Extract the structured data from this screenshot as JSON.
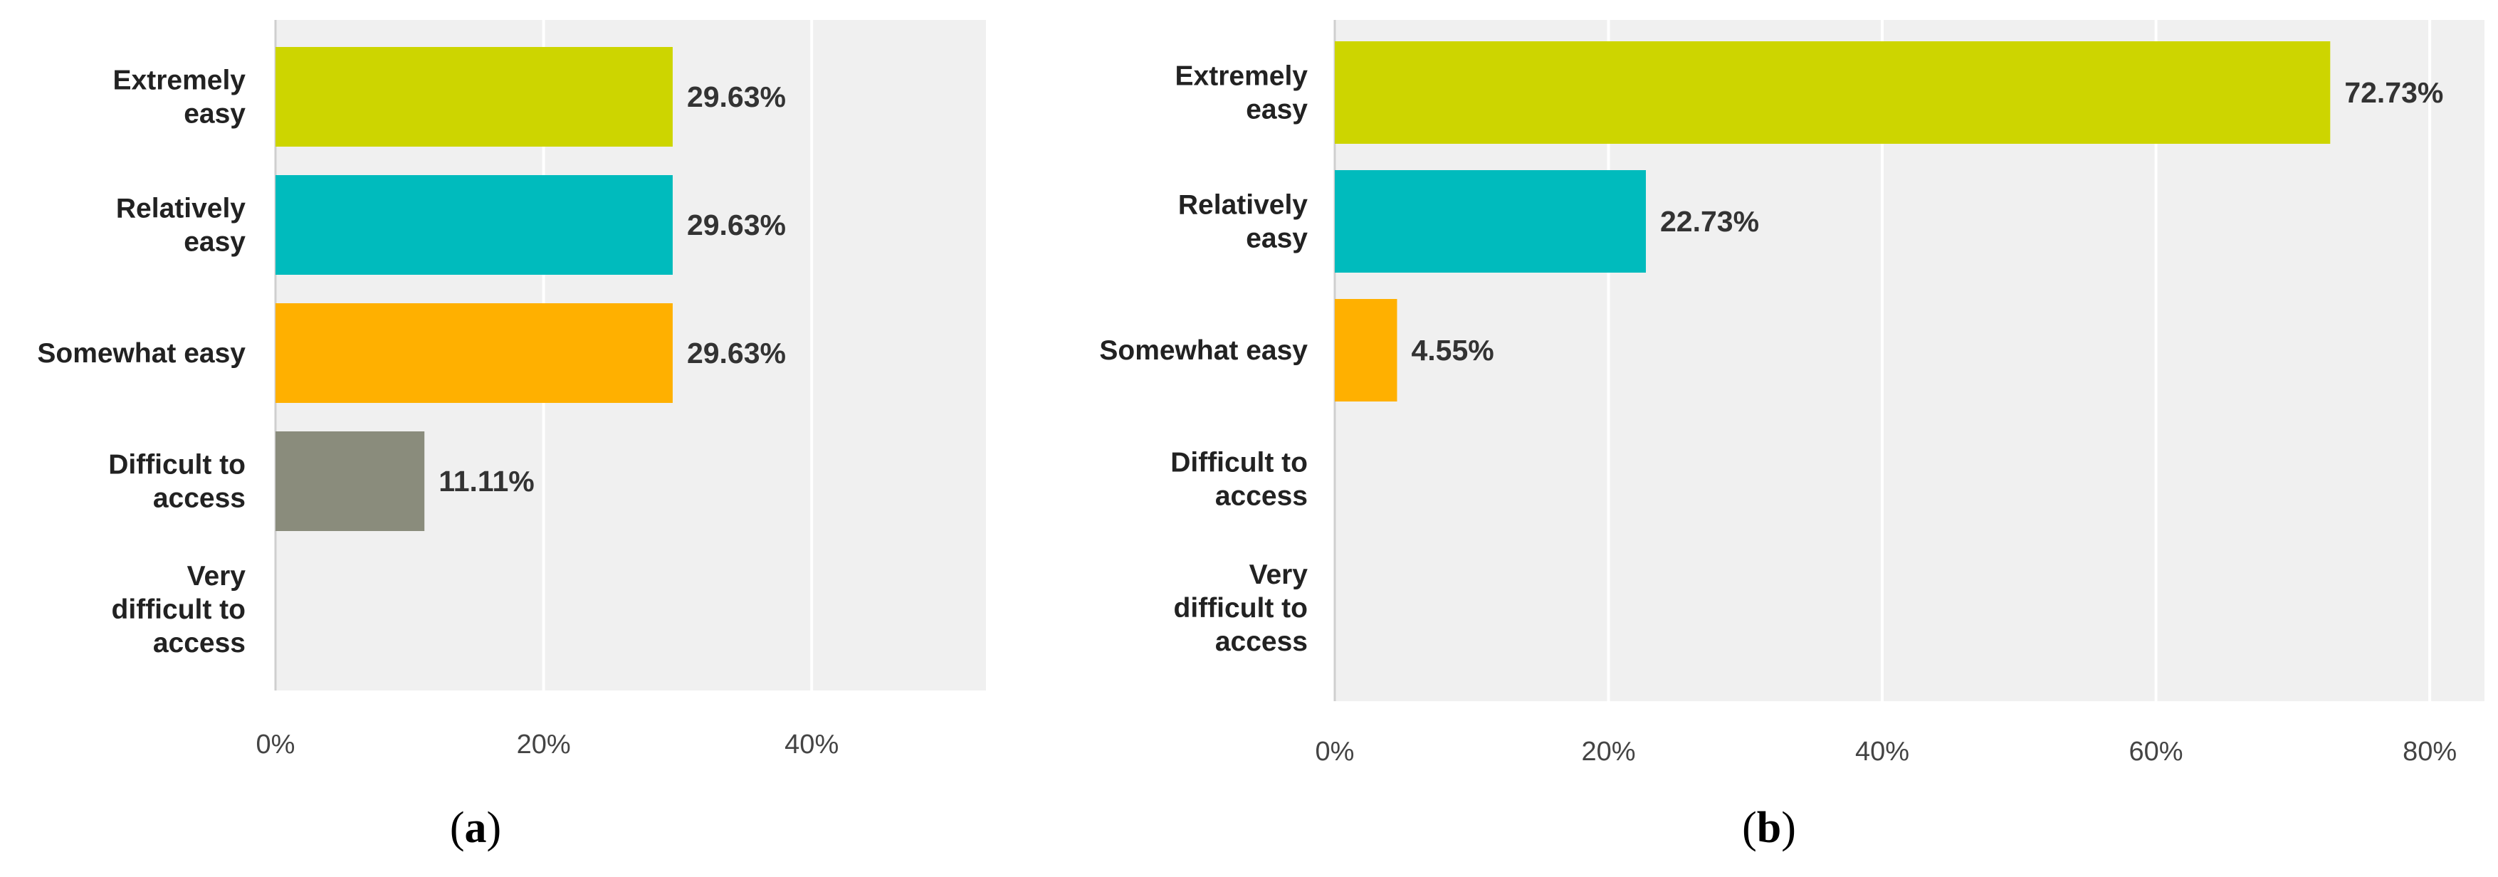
{
  "colors": {
    "extremely_easy": "#cdd500",
    "relatively_easy": "#00bbbd",
    "somewhat_easy": "#ffb000",
    "difficult_to_access": "#8a8c7c",
    "very_difficult_to_access": "#b5413b",
    "plot_background": "#f0f0f0",
    "gridline": "#ffffff",
    "axis_line": "#cfcfcf"
  },
  "panels": [
    {
      "label_open": "(",
      "label_letter": "a",
      "label_close": ")"
    },
    {
      "label_open": "(",
      "label_letter": "b",
      "label_close": ")"
    }
  ],
  "chart_data": [
    {
      "type": "bar",
      "orientation": "horizontal",
      "categories": [
        [
          "Extremely",
          "easy"
        ],
        [
          "Relatively",
          "easy"
        ],
        [
          "Somewhat easy"
        ],
        [
          "Difficult to",
          "access"
        ],
        [
          "Very",
          "difficult to",
          "access"
        ]
      ],
      "values": [
        29.63,
        29.63,
        29.63,
        11.11,
        0
      ],
      "value_labels": [
        "29.63%",
        "29.63%",
        "29.63%",
        "11.11%",
        ""
      ],
      "xlim": [
        0,
        53
      ],
      "ticks": [
        0,
        20,
        40
      ],
      "tick_labels": [
        "0%",
        "20%",
        "40%"
      ],
      "grid": true,
      "title": "",
      "xlabel": "",
      "ylabel": ""
    },
    {
      "type": "bar",
      "orientation": "horizontal",
      "categories": [
        [
          "Extremely",
          "easy"
        ],
        [
          "Relatively",
          "easy"
        ],
        [
          "Somewhat easy"
        ],
        [
          "Difficult to",
          "access"
        ],
        [
          "Very",
          "difficult to",
          "access"
        ]
      ],
      "values": [
        72.73,
        22.73,
        4.55,
        0,
        0
      ],
      "value_labels": [
        "72.73%",
        "22.73%",
        "4.55%",
        "",
        ""
      ],
      "xlim": [
        0,
        84
      ],
      "ticks": [
        0,
        20,
        40,
        60,
        80
      ],
      "tick_labels": [
        "0%",
        "20%",
        "40%",
        "60%",
        "80%"
      ],
      "grid": true,
      "title": "",
      "xlabel": "",
      "ylabel": ""
    }
  ]
}
